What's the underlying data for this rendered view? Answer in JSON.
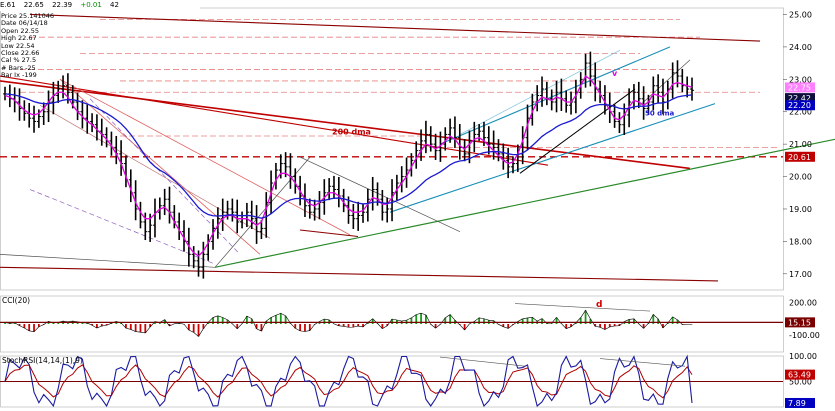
{
  "header": {
    "ticker": "E.61",
    "field1": "22.65",
    "field2": "22.39",
    "field3": "+0.01",
    "field4": "42"
  },
  "info": [
    "Price  25.141046",
    "Date  06/14/18",
    "Open  22.55",
    "High  22.67",
    "Low  22.54",
    "Close  22.66",
    "Cal % 27.5",
    "# Bars -25",
    "Bar Ix -199"
  ],
  "colors": {
    "ma_fast": "#e000e0",
    "ma_slow": "#1a1ad0",
    "trend_red": "#c00000",
    "channel": "#1a8fb8",
    "support_green": "#2a8a2a",
    "dashed_red": "#d04040",
    "cci_up": "#1a9a1a",
    "cci_down": "#d00000",
    "stoch_k": "#1a1aa0",
    "stoch_d": "#b00000",
    "badge_pink": "#ff80ff",
    "badge_red": "#c00000",
    "badge_blue": "#0000c0",
    "badge_dark": "#101040"
  },
  "annotations": {
    "ma200": "200 dma",
    "ma50": "50 dma",
    "cci_div": "d",
    "price_mark": "v"
  },
  "chart_data": [
    {
      "type": "candlestick",
      "ylim": [
        16.5,
        25.2
      ],
      "yticks": [
        "25.00",
        "24.00",
        "23.00",
        "22.00",
        "21.00",
        "20.00",
        "19.00",
        "18.00",
        "17.00"
      ],
      "ytick_values": [
        25,
        24,
        23,
        22,
        21,
        20,
        19,
        18,
        17
      ],
      "badges": [
        {
          "label": "22.75",
          "value": 22.75,
          "color": "#ff80ff",
          "text": "#fff"
        },
        {
          "label": "22.42",
          "value": 22.42,
          "color": "#101040",
          "text": "#fff"
        },
        {
          "label": "22.20",
          "value": 22.2,
          "color": "#0000c0",
          "text": "#fff"
        },
        {
          "label": "20.61",
          "value": 20.61,
          "color": "#c00000",
          "text": "#fff"
        }
      ],
      "close": [
        22.55,
        22.4,
        22.3,
        22.1,
        21.95,
        21.8,
        21.7,
        21.85,
        22.0,
        22.3,
        22.5,
        22.7,
        22.8,
        22.6,
        22.3,
        22.0,
        21.8,
        21.7,
        21.6,
        21.4,
        21.3,
        21.1,
        20.9,
        20.7,
        20.4,
        19.9,
        19.5,
        19.0,
        18.6,
        18.3,
        18.5,
        18.9,
        19.1,
        19.3,
        18.9,
        18.6,
        18.3,
        18.0,
        17.6,
        17.4,
        17.2,
        17.6,
        18.0,
        18.4,
        18.7,
        18.9,
        19.0,
        18.9,
        18.6,
        18.7,
        18.9,
        18.7,
        18.3,
        18.4,
        19.2,
        19.8,
        20.2,
        20.4,
        20.3,
        20.0,
        19.7,
        19.4,
        19.1,
        18.9,
        19.0,
        19.2,
        19.5,
        19.7,
        19.6,
        19.4,
        19.1,
        18.8,
        18.7,
        18.8,
        18.9,
        19.3,
        19.6,
        19.3,
        18.9,
        19.0,
        19.5,
        19.8,
        20.0,
        20.2,
        20.5,
        20.8,
        21.1,
        21.3,
        21.0,
        20.8,
        21.0,
        21.3,
        21.5,
        21.2,
        20.9,
        20.7,
        21.1,
        21.3,
        21.4,
        21.2,
        21.0,
        20.9,
        20.7,
        20.5,
        20.3,
        20.4,
        20.7,
        21.2,
        21.8,
        22.3,
        22.5,
        22.7,
        22.4,
        22.3,
        22.6,
        22.4,
        22.2,
        22.3,
        22.6,
        23.0,
        23.5,
        23.1,
        22.7,
        22.5,
        22.2,
        22.0,
        21.7,
        21.6,
        21.9,
        22.3,
        22.6,
        22.4,
        22.1,
        22.3,
        22.8,
        22.6,
        22.3,
        22.7,
        23.2,
        23.1,
        22.8,
        22.7,
        22.66
      ],
      "ma_fast": [
        22.5,
        22.45,
        22.35,
        22.2,
        22.05,
        21.95,
        21.9,
        21.95,
        22.1,
        22.3,
        22.5,
        22.6,
        22.6,
        22.45,
        22.2,
        22.0,
        21.85,
        21.7,
        21.6,
        21.45,
        21.3,
        21.15,
        20.95,
        20.7,
        20.4,
        20.0,
        19.6,
        19.2,
        18.9,
        18.7,
        18.7,
        18.85,
        19.0,
        19.05,
        18.9,
        18.6,
        18.35,
        18.1,
        17.85,
        17.65,
        17.55,
        17.7,
        17.95,
        18.25,
        18.5,
        18.7,
        18.8,
        18.8,
        18.7,
        18.7,
        18.7,
        18.6,
        18.5,
        18.6,
        19.0,
        19.5,
        19.9,
        20.1,
        20.1,
        20.0,
        19.8,
        19.55,
        19.3,
        19.15,
        19.1,
        19.2,
        19.35,
        19.5,
        19.5,
        19.4,
        19.2,
        19.0,
        18.9,
        18.9,
        18.95,
        19.15,
        19.35,
        19.3,
        19.15,
        19.15,
        19.35,
        19.6,
        19.8,
        20.0,
        20.3,
        20.55,
        20.8,
        21.0,
        20.95,
        20.85,
        20.95,
        21.1,
        21.25,
        21.15,
        20.95,
        20.85,
        21.0,
        21.15,
        21.2,
        21.1,
        20.95,
        20.8,
        20.65,
        20.5,
        20.4,
        20.45,
        20.7,
        21.1,
        21.6,
        22.0,
        22.3,
        22.45,
        22.4,
        22.35,
        22.45,
        22.4,
        22.3,
        22.3,
        22.5,
        22.8,
        23.1,
        23.0,
        22.8,
        22.55,
        22.3,
        22.05,
        21.8,
        21.75,
        21.9,
        22.15,
        22.35,
        22.3,
        22.2,
        22.3,
        22.55,
        22.5,
        22.45,
        22.6,
        22.85,
        22.9,
        22.85,
        22.8,
        22.75
      ]
    },
    {
      "type": "bar",
      "title": "CCI(20)",
      "ylim": [
        -260,
        260
      ],
      "yticks": [
        "200.00",
        "-100.00"
      ],
      "ytick_values": [
        200,
        -100
      ],
      "badge": {
        "label": "15.15",
        "value": 15.15
      }
    },
    {
      "type": "line",
      "title": "StochRSI(14,14,(1),9)",
      "ylim": [
        0,
        100
      ],
      "yticks": [
        "100.00",
        "50.00"
      ],
      "ytick_values": [
        100,
        50
      ],
      "badges": [
        {
          "label": "63.49",
          "value": 63.49,
          "color": "#c00000"
        },
        {
          "label": "7.89",
          "value": 7.89,
          "color": "#0000c0"
        }
      ]
    }
  ]
}
